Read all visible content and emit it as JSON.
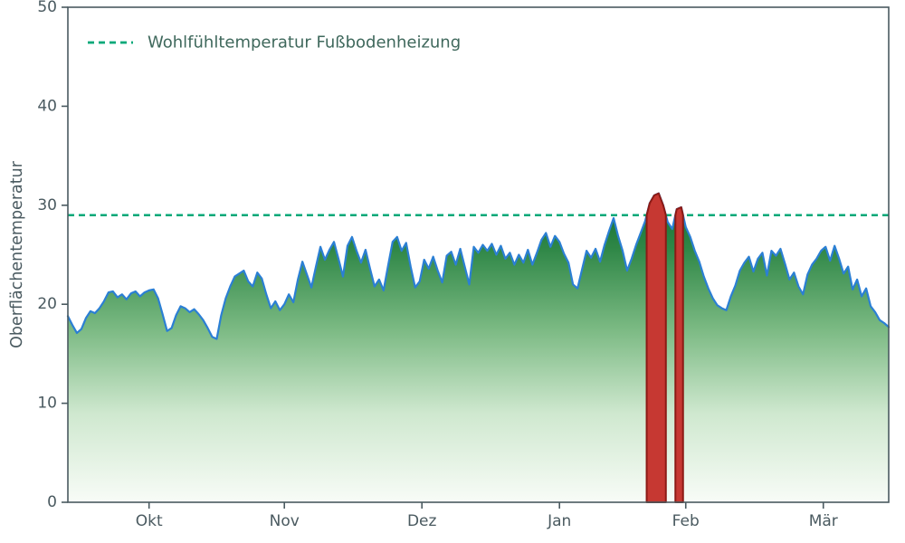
{
  "chart_data": {
    "type": "area",
    "title": "",
    "ylabel": "Oberflächentemperatur",
    "xlabel": "",
    "ylim": [
      0,
      50
    ],
    "xlim": [
      0,
      182
    ],
    "yticks": [
      0,
      10,
      20,
      30,
      40,
      50
    ],
    "xticks": [
      {
        "label": "Okt",
        "day": 18
      },
      {
        "label": "Nov",
        "day": 48
      },
      {
        "label": "Dez",
        "day": 78.5
      },
      {
        "label": "Jan",
        "day": 109
      },
      {
        "label": "Feb",
        "day": 137
      },
      {
        "label": "Mär",
        "day": 167.5
      }
    ],
    "grid": false,
    "legend_position": "upper left",
    "comfort_line": {
      "value": 29,
      "label": "Wohlfühltemperatur Fußbodenheizung"
    },
    "exceed_threshold": 29,
    "series": [
      {
        "name": "Oberflächentemperatur",
        "x_unit": "day_index_from_mid_september",
        "values": [
          18.8,
          17.9,
          17.1,
          17.5,
          18.6,
          19.3,
          19.1,
          19.6,
          20.3,
          21.2,
          21.3,
          20.7,
          21.0,
          20.5,
          21.1,
          21.3,
          20.8,
          21.2,
          21.4,
          21.5,
          20.6,
          19.0,
          17.3,
          17.6,
          18.9,
          19.8,
          19.6,
          19.2,
          19.5,
          19.0,
          18.4,
          17.6,
          16.7,
          16.5,
          18.9,
          20.6,
          21.8,
          22.8,
          23.1,
          23.4,
          22.3,
          21.8,
          23.2,
          22.6,
          21.0,
          19.6,
          20.3,
          19.4,
          20.0,
          21.0,
          20.2,
          22.5,
          24.3,
          23.0,
          21.7,
          23.8,
          25.8,
          24.5,
          25.5,
          26.3,
          24.6,
          22.8,
          25.9,
          26.8,
          25.4,
          24.2,
          25.5,
          23.6,
          21.8,
          22.5,
          21.4,
          23.9,
          26.3,
          26.8,
          25.4,
          26.2,
          23.8,
          21.7,
          22.3,
          24.5,
          23.6,
          24.8,
          23.4,
          22.2,
          24.9,
          25.3,
          24.0,
          25.6,
          23.8,
          22.0,
          25.8,
          25.2,
          26.0,
          25.4,
          26.1,
          25.0,
          25.9,
          24.6,
          25.2,
          24.0,
          25.0,
          24.2,
          25.5,
          24.0,
          25.2,
          26.5,
          27.2,
          25.8,
          26.9,
          26.3,
          25.1,
          24.2,
          22.0,
          21.6,
          23.5,
          25.4,
          24.7,
          25.6,
          24.3,
          26.0,
          27.4,
          28.7,
          26.9,
          25.4,
          23.4,
          24.6,
          26.0,
          27.2,
          28.4,
          30.2,
          31.0,
          31.2,
          30.0,
          28.3,
          27.6,
          29.6,
          29.8,
          27.8,
          26.8,
          25.4,
          24.3,
          22.8,
          21.6,
          20.6,
          19.9,
          19.6,
          19.4,
          20.8,
          21.9,
          23.4,
          24.2,
          24.8,
          23.3,
          24.6,
          25.2,
          22.9,
          25.4,
          24.9,
          25.6,
          24.1,
          22.5,
          23.2,
          21.8,
          21.0,
          23.0,
          24.0,
          24.6,
          25.4,
          25.8,
          24.4,
          25.9,
          24.6,
          23.1,
          23.8,
          21.5,
          22.5,
          20.8,
          21.6,
          19.8,
          19.2,
          18.4,
          18.1,
          17.7
        ]
      }
    ],
    "colors": {
      "line": "#2b7fd4",
      "area_top": "#0c682e",
      "area_mid": "#7ab982",
      "area_light": "#cfe8cf",
      "area_bottom": "#f8fcf7",
      "comfort_line": "#00a878",
      "exceed_fill": "#c63832",
      "exceed_edge": "#8c1a15",
      "axis": "#4a5a60",
      "legend_text": "#3f685c"
    }
  }
}
